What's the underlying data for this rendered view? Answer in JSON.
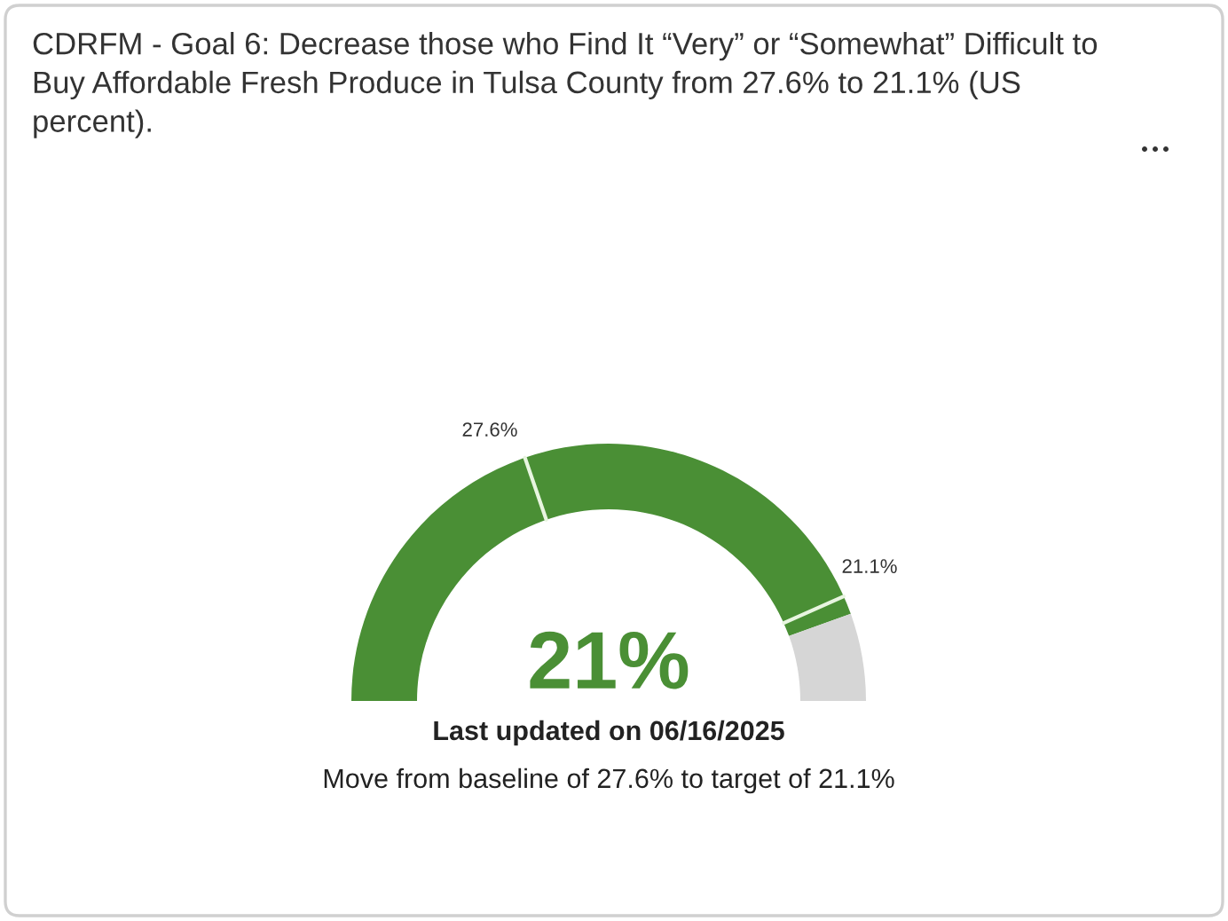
{
  "chart_data": {
    "type": "donut",
    "categories": [
      null,
      null
    ],
    "values": [
      89,
      11
    ],
    "colors": [
      "#4a8f35",
      "#d6d6d6"
    ],
    "title": "CDRFM - Goal 6: Decrease those who Find It “Very” or “Somewhat” Difficult to Buy Affordable Fresh Produce in Tulsa County from 27.6% to 21.1% (US percent).",
    "annotations": [
      "27.6%",
      "21.1%",
      "21%",
      "Last updated on 06/16/2025",
      "Move from baseline of 27.6% to target of 21.1%"
    ]
  }
}
